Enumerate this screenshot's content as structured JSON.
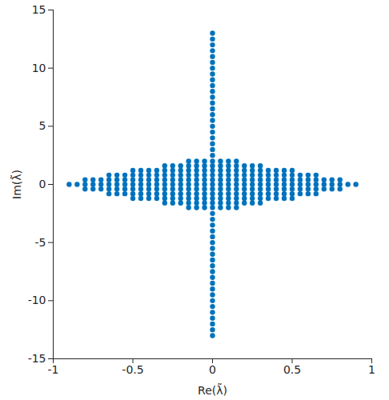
{
  "chart_data": {
    "type": "scatter",
    "x_label": "Re(λ̃)",
    "y_label": "Im(λ̃)",
    "color": "#0072BD",
    "marker": "circle",
    "grid": false,
    "xlim": [
      -1,
      1
    ],
    "xticks": [
      -1,
      -0.5,
      0,
      0.5,
      1
    ],
    "ylim": [
      -15,
      15
    ],
    "yticks": [
      -15,
      -10,
      -5,
      0,
      5,
      10,
      15
    ],
    "x": [
      0,
      0,
      0,
      0,
      0,
      0,
      0,
      0,
      0,
      0,
      0,
      0,
      0,
      0,
      0,
      0,
      0,
      0,
      0,
      0,
      0,
      0,
      0,
      0,
      0,
      0,
      0,
      0,
      0,
      0,
      0,
      0,
      0,
      0,
      0,
      0,
      0,
      0,
      0,
      0,
      0,
      0,
      0,
      0,
      -0.9,
      -0.85,
      -0.8,
      -0.75,
      -0.7,
      -0.65,
      -0.6,
      -0.55,
      -0.5,
      -0.45,
      -0.4,
      -0.35,
      -0.3,
      -0.25,
      -0.2,
      -0.15,
      -0.1,
      -0.05,
      0,
      0.05,
      0.1,
      0.15,
      0.2,
      0.25,
      0.3,
      0.35,
      0.4,
      0.45,
      0.5,
      0.55,
      0.6,
      0.65,
      0.7,
      0.75,
      0.8,
      0.85,
      0.9,
      -0.8,
      -0.75,
      -0.7,
      -0.65,
      -0.6,
      -0.55,
      -0.5,
      -0.45,
      -0.4,
      -0.35,
      -0.3,
      -0.25,
      -0.2,
      -0.15,
      -0.1,
      -0.05,
      0,
      0.05,
      0.1,
      0.15,
      0.2,
      0.25,
      0.3,
      0.35,
      0.4,
      0.45,
      0.5,
      0.55,
      0.6,
      0.65,
      0.7,
      0.75,
      0.8,
      -0.8,
      -0.75,
      -0.7,
      -0.65,
      -0.6,
      -0.55,
      -0.5,
      -0.45,
      -0.4,
      -0.35,
      -0.3,
      -0.25,
      -0.2,
      -0.15,
      -0.1,
      -0.05,
      0,
      0.05,
      0.1,
      0.15,
      0.2,
      0.25,
      0.3,
      0.35,
      0.4,
      0.45,
      0.5,
      0.55,
      0.6,
      0.65,
      0.7,
      0.75,
      0.8,
      -0.65,
      -0.6,
      -0.55,
      -0.5,
      -0.45,
      -0.4,
      -0.35,
      -0.3,
      -0.25,
      -0.2,
      -0.15,
      -0.1,
      -0.05,
      0,
      0.05,
      0.1,
      0.15,
      0.2,
      0.25,
      0.3,
      0.35,
      0.4,
      0.45,
      0.5,
      0.55,
      0.6,
      0.65,
      -0.65,
      -0.6,
      -0.55,
      -0.5,
      -0.45,
      -0.4,
      -0.35,
      -0.3,
      -0.25,
      -0.2,
      -0.15,
      -0.1,
      -0.05,
      0,
      0.05,
      0.1,
      0.15,
      0.2,
      0.25,
      0.3,
      0.35,
      0.4,
      0.45,
      0.5,
      0.55,
      0.6,
      0.65,
      -0.5,
      -0.45,
      -0.4,
      -0.35,
      -0.3,
      -0.25,
      -0.2,
      -0.15,
      -0.1,
      -0.05,
      0,
      0.05,
      0.1,
      0.15,
      0.2,
      0.25,
      0.3,
      0.35,
      0.4,
      0.45,
      0.5,
      -0.5,
      -0.45,
      -0.4,
      -0.35,
      -0.3,
      -0.25,
      -0.2,
      -0.15,
      -0.1,
      -0.05,
      0,
      0.05,
      0.1,
      0.15,
      0.2,
      0.25,
      0.3,
      0.35,
      0.4,
      0.45,
      0.5,
      -0.3,
      -0.25,
      -0.2,
      -0.15,
      -0.1,
      -0.05,
      0,
      0.05,
      0.1,
      0.15,
      0.2,
      0.25,
      0.3,
      -0.3,
      -0.25,
      -0.2,
      -0.15,
      -0.1,
      -0.05,
      0,
      0.05,
      0.1,
      0.15,
      0.2,
      0.25,
      0.3,
      -0.15,
      -0.1,
      -0.05,
      0,
      0.05,
      0.1,
      0.15,
      -0.15,
      -0.1,
      -0.05,
      0,
      0.05,
      0.1,
      0.15
    ],
    "values": [
      13,
      12.5,
      12,
      11.5,
      11,
      10.5,
      10,
      9.5,
      9,
      8.5,
      8,
      7.5,
      7,
      6.5,
      6,
      5.5,
      5,
      4.5,
      4,
      3.5,
      3,
      2.5,
      -13,
      -12.5,
      -12,
      -11.5,
      -11,
      -10.5,
      -10,
      -9.5,
      -9,
      -8.5,
      -8,
      -7.5,
      -7,
      -6.5,
      -6,
      -5.5,
      -5,
      -4.5,
      -4,
      -3.5,
      -3,
      -2.5,
      0,
      0,
      0,
      0,
      0,
      0,
      0,
      0,
      0,
      0,
      0,
      0,
      0,
      0,
      0,
      0,
      0,
      0,
      0,
      0,
      0,
      0,
      0,
      0,
      0,
      0,
      0,
      0,
      0,
      0,
      0,
      0,
      0,
      0,
      0,
      0,
      0,
      0.4,
      0.4,
      0.4,
      0.4,
      0.4,
      0.4,
      0.4,
      0.4,
      0.4,
      0.4,
      0.4,
      0.4,
      0.4,
      0.4,
      0.4,
      0.4,
      0.4,
      0.4,
      0.4,
      0.4,
      0.4,
      0.4,
      0.4,
      0.4,
      0.4,
      0.4,
      0.4,
      0.4,
      0.4,
      0.4,
      0.4,
      0.4,
      0.4,
      -0.4,
      -0.4,
      -0.4,
      -0.4,
      -0.4,
      -0.4,
      -0.4,
      -0.4,
      -0.4,
      -0.4,
      -0.4,
      -0.4,
      -0.4,
      -0.4,
      -0.4,
      -0.4,
      -0.4,
      -0.4,
      -0.4,
      -0.4,
      -0.4,
      -0.4,
      -0.4,
      -0.4,
      -0.4,
      -0.4,
      -0.4,
      -0.4,
      -0.4,
      -0.4,
      -0.4,
      -0.4,
      -0.4,
      0.8,
      0.8,
      0.8,
      0.8,
      0.8,
      0.8,
      0.8,
      0.8,
      0.8,
      0.8,
      0.8,
      0.8,
      0.8,
      0.8,
      0.8,
      0.8,
      0.8,
      0.8,
      0.8,
      0.8,
      0.8,
      0.8,
      0.8,
      0.8,
      0.8,
      0.8,
      0.8,
      -0.8,
      -0.8,
      -0.8,
      -0.8,
      -0.8,
      -0.8,
      -0.8,
      -0.8,
      -0.8,
      -0.8,
      -0.8,
      -0.8,
      -0.8,
      -0.8,
      -0.8,
      -0.8,
      -0.8,
      -0.8,
      -0.8,
      -0.8,
      -0.8,
      -0.8,
      -0.8,
      -0.8,
      -0.8,
      -0.8,
      -0.8,
      1.2,
      1.2,
      1.2,
      1.2,
      1.2,
      1.2,
      1.2,
      1.2,
      1.2,
      1.2,
      1.2,
      1.2,
      1.2,
      1.2,
      1.2,
      1.2,
      1.2,
      1.2,
      1.2,
      1.2,
      1.2,
      -1.2,
      -1.2,
      -1.2,
      -1.2,
      -1.2,
      -1.2,
      -1.2,
      -1.2,
      -1.2,
      -1.2,
      -1.2,
      -1.2,
      -1.2,
      -1.2,
      -1.2,
      -1.2,
      -1.2,
      -1.2,
      -1.2,
      -1.2,
      -1.2,
      1.6,
      1.6,
      1.6,
      1.6,
      1.6,
      1.6,
      1.6,
      1.6,
      1.6,
      1.6,
      1.6,
      1.6,
      1.6,
      -1.6,
      -1.6,
      -1.6,
      -1.6,
      -1.6,
      -1.6,
      -1.6,
      -1.6,
      -1.6,
      -1.6,
      -1.6,
      -1.6,
      -1.6,
      2,
      2,
      2,
      2,
      2,
      2,
      2,
      -2,
      -2,
      -2,
      -2,
      -2,
      -2,
      -2
    ]
  }
}
